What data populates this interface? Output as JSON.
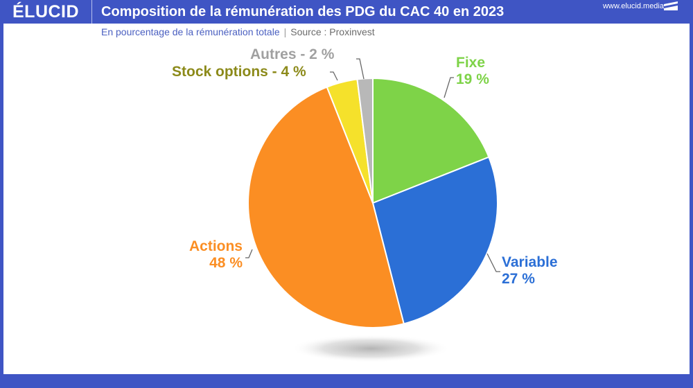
{
  "header": {
    "logo": "ÉLUCID",
    "title": "Composition de la rémunération des PDG du CAC 40 en 2023",
    "subtitle": "En pourcentage de la rémunération totale",
    "separator": "|",
    "source": "Source : Proxinvest"
  },
  "footer": {
    "url": "www.elucid.media"
  },
  "labels": {
    "fixe_name": "Fixe",
    "fixe_value": "19 %",
    "variable_name": "Variable",
    "variable_value": "27 %",
    "actions_name": "Actions",
    "actions_value": "48 %",
    "stock_options": "Stock options - 4 %",
    "autres": "Autres - 2 %"
  },
  "colors": {
    "brand": "#3f55c4",
    "fixe": "#7ed348",
    "variable": "#2b6fd6",
    "actions": "#fb8e23",
    "stock_options": "#f5e12b",
    "autres": "#b8b8b8",
    "stock_options_label": "#8c8a1a",
    "autres_label": "#a0a0a0"
  },
  "chart_data": {
    "type": "pie",
    "title": "Composition de la rémunération des PDG du CAC 40 en 2023",
    "subtitle": "En pourcentage de la rémunération totale | Source : Proxinvest",
    "categories": [
      "Fixe",
      "Variable",
      "Actions",
      "Stock options",
      "Autres"
    ],
    "values": [
      19,
      27,
      48,
      4,
      2
    ],
    "unit": "%",
    "start_angle_deg": 0,
    "direction": "clockwise",
    "legend": "none (direct labels)"
  }
}
